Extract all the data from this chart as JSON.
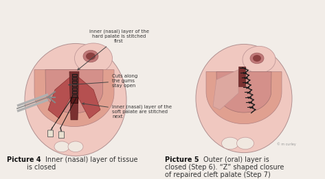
{
  "background_color": "#f2ede8",
  "fig_width": 4.73,
  "fig_height": 2.61,
  "dpi": 100,
  "label1": "inner (nasal) layer of the\nhard palate is stitched\nfirst",
  "label2": "Cuts along\nthe gums\nstay open",
  "label3": "Inner (nasal) layer of the\nsoft palate are stitched\nnext",
  "skin_pale": "#f0c8c0",
  "skin_mid": "#e0a090",
  "skin_dark": "#c88878",
  "skin_inner": "#d4908a",
  "tissue_dark": "#7a3030",
  "tissue_mid": "#b55050",
  "dark_line": "#555555",
  "stitch_color": "#1a1a1a",
  "text_color": "#333333",
  "bold_text": "#111111",
  "instrument_color": "#aaaaaa",
  "white_tissue": "#f8e8e0"
}
